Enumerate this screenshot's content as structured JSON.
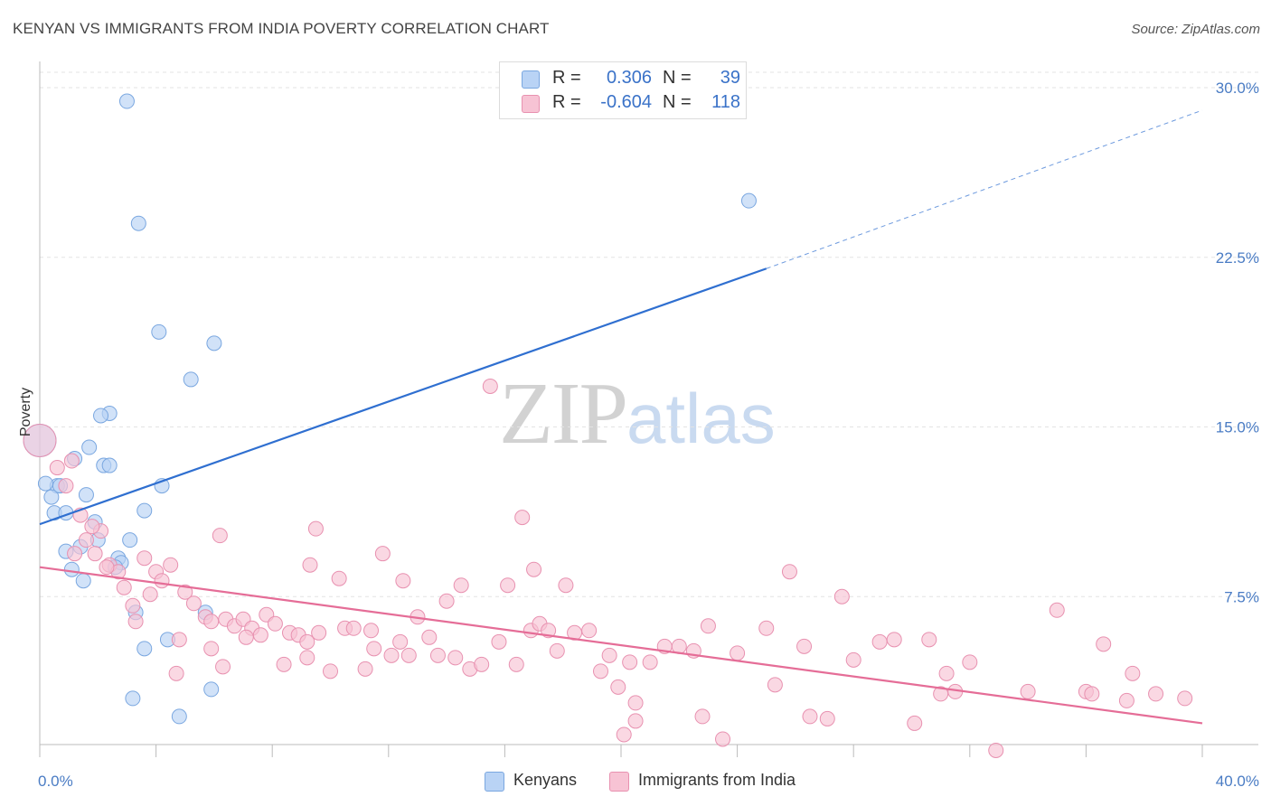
{
  "title": "KENYAN VS IMMIGRANTS FROM INDIA POVERTY CORRELATION CHART",
  "source": "Source: ZipAtlas.com",
  "watermark": {
    "zip": "ZIP",
    "atlas": "atlas"
  },
  "legend": {
    "rows": [
      {
        "r_label": "R =",
        "r_value": "0.306",
        "n_label": "N =",
        "n_value": "39",
        "color": "#b9d3f5",
        "border": "#7aa7e0"
      },
      {
        "r_label": "R =",
        "r_value": "-0.604",
        "n_label": "N =",
        "n_value": "118",
        "color": "#f7c3d4",
        "border": "#e891b0"
      }
    ]
  },
  "bottom_legend": [
    {
      "label": "Kenyans",
      "color": "#b9d3f5",
      "border": "#7aa7e0"
    },
    {
      "label": "Immigrants from India",
      "color": "#f7c3d4",
      "border": "#e891b0"
    }
  ],
  "chart_data": {
    "type": "scatter",
    "title": "KENYAN VS IMMIGRANTS FROM INDIA POVERTY CORRELATION CHART",
    "ylabel": "Poverty",
    "xlabel": "",
    "xlim": [
      0,
      40
    ],
    "ylim": [
      0,
      30
    ],
    "x_tick_labels": [
      "0.0%",
      "40.0%"
    ],
    "y_ticks": [
      7.5,
      15.0,
      22.5,
      30.0
    ],
    "y_tick_labels": [
      "7.5%",
      "15.0%",
      "22.5%",
      "30.0%"
    ],
    "grid": "horizontal dashed",
    "series": [
      {
        "name": "Kenyans",
        "color": "#b9d3f5",
        "stroke": "#7aa7e0",
        "line_color": "#2f6fd0",
        "trend": {
          "x0": 0,
          "y0": 10.7,
          "x1": 25,
          "y1": 22.0,
          "dash_to_x": 40,
          "dash_to_y": 29.0
        },
        "points": [
          [
            3.0,
            29.4
          ],
          [
            3.4,
            24.0
          ],
          [
            24.4,
            25.0
          ],
          [
            4.1,
            19.2
          ],
          [
            6.0,
            18.7
          ],
          [
            5.2,
            17.1
          ],
          [
            2.4,
            15.6
          ],
          [
            2.1,
            15.5
          ],
          [
            1.7,
            14.1
          ],
          [
            1.2,
            13.6
          ],
          [
            2.2,
            13.3
          ],
          [
            2.4,
            13.3
          ],
          [
            0.0,
            14.4
          ],
          [
            0.6,
            12.4
          ],
          [
            0.7,
            12.4
          ],
          [
            4.2,
            12.4
          ],
          [
            0.4,
            11.9
          ],
          [
            1.6,
            12.0
          ],
          [
            0.5,
            11.2
          ],
          [
            0.9,
            11.2
          ],
          [
            3.6,
            11.3
          ],
          [
            1.9,
            10.8
          ],
          [
            2.0,
            10.0
          ],
          [
            3.1,
            10.0
          ],
          [
            0.9,
            9.5
          ],
          [
            1.4,
            9.7
          ],
          [
            2.7,
            9.2
          ],
          [
            2.8,
            9.0
          ],
          [
            2.6,
            8.8
          ],
          [
            1.1,
            8.7
          ],
          [
            1.5,
            8.2
          ],
          [
            3.3,
            6.8
          ],
          [
            5.7,
            6.8
          ],
          [
            4.4,
            5.6
          ],
          [
            3.6,
            5.2
          ],
          [
            5.9,
            3.4
          ],
          [
            3.2,
            3.0
          ],
          [
            4.8,
            2.2
          ],
          [
            0.2,
            12.5
          ]
        ]
      },
      {
        "name": "Immigrants from India",
        "color": "#f7c3d4",
        "stroke": "#e891b0",
        "line_color": "#e56d97",
        "trend": {
          "x0": 0,
          "y0": 8.8,
          "x1": 40,
          "y1": 1.9
        },
        "points": [
          [
            0.0,
            14.4
          ],
          [
            0.6,
            13.2
          ],
          [
            1.1,
            13.5
          ],
          [
            0.9,
            12.4
          ],
          [
            1.4,
            11.1
          ],
          [
            1.6,
            10.0
          ],
          [
            2.1,
            10.4
          ],
          [
            1.2,
            9.4
          ],
          [
            1.9,
            9.4
          ],
          [
            2.4,
            8.9
          ],
          [
            2.7,
            8.6
          ],
          [
            2.9,
            7.9
          ],
          [
            3.2,
            7.1
          ],
          [
            3.6,
            9.2
          ],
          [
            3.8,
            7.6
          ],
          [
            4.0,
            8.6
          ],
          [
            4.2,
            8.2
          ],
          [
            4.5,
            8.9
          ],
          [
            4.8,
            5.6
          ],
          [
            5.0,
            7.7
          ],
          [
            5.3,
            7.2
          ],
          [
            5.7,
            6.6
          ],
          [
            5.9,
            5.2
          ],
          [
            6.2,
            10.2
          ],
          [
            6.4,
            6.5
          ],
          [
            6.7,
            6.2
          ],
          [
            7.0,
            6.5
          ],
          [
            7.3,
            6.1
          ],
          [
            7.6,
            5.8
          ],
          [
            7.8,
            6.7
          ],
          [
            8.1,
            6.3
          ],
          [
            8.4,
            4.5
          ],
          [
            8.6,
            5.9
          ],
          [
            8.9,
            5.8
          ],
          [
            9.2,
            5.5
          ],
          [
            9.6,
            5.9
          ],
          [
            9.3,
            8.9
          ],
          [
            9.5,
            10.5
          ],
          [
            10.0,
            4.2
          ],
          [
            10.3,
            8.3
          ],
          [
            10.5,
            6.1
          ],
          [
            10.8,
            6.1
          ],
          [
            11.2,
            4.3
          ],
          [
            11.5,
            5.2
          ],
          [
            11.8,
            9.4
          ],
          [
            12.1,
            4.9
          ],
          [
            12.4,
            5.5
          ],
          [
            12.7,
            4.9
          ],
          [
            12.5,
            8.2
          ],
          [
            13.0,
            6.6
          ],
          [
            13.4,
            5.7
          ],
          [
            13.7,
            4.9
          ],
          [
            14.0,
            7.3
          ],
          [
            14.3,
            4.8
          ],
          [
            14.5,
            8.0
          ],
          [
            14.8,
            4.3
          ],
          [
            15.2,
            4.5
          ],
          [
            15.5,
            16.8
          ],
          [
            15.8,
            5.5
          ],
          [
            16.1,
            8.0
          ],
          [
            16.4,
            4.5
          ],
          [
            16.6,
            11.0
          ],
          [
            16.9,
            6.0
          ],
          [
            17.2,
            6.3
          ],
          [
            17.5,
            6.0
          ],
          [
            17.0,
            8.7
          ],
          [
            17.8,
            5.1
          ],
          [
            18.1,
            8.0
          ],
          [
            18.4,
            5.9
          ],
          [
            18.9,
            6.0
          ],
          [
            19.3,
            4.2
          ],
          [
            19.6,
            4.9
          ],
          [
            19.9,
            3.5
          ],
          [
            20.3,
            4.6
          ],
          [
            20.5,
            2.0
          ],
          [
            21.0,
            4.6
          ],
          [
            21.5,
            5.3
          ],
          [
            22.0,
            5.3
          ],
          [
            22.5,
            5.1
          ],
          [
            22.8,
            2.2
          ],
          [
            23.0,
            6.2
          ],
          [
            24.0,
            5.0
          ],
          [
            25.0,
            6.1
          ],
          [
            25.3,
            3.6
          ],
          [
            25.8,
            8.6
          ],
          [
            26.3,
            5.3
          ],
          [
            26.5,
            2.2
          ],
          [
            27.1,
            2.1
          ],
          [
            27.6,
            7.5
          ],
          [
            28.0,
            4.7
          ],
          [
            28.9,
            5.5
          ],
          [
            29.4,
            5.6
          ],
          [
            30.1,
            1.9
          ],
          [
            30.6,
            5.6
          ],
          [
            31.2,
            4.1
          ],
          [
            31.5,
            3.3
          ],
          [
            32.0,
            4.6
          ],
          [
            31.0,
            3.2
          ],
          [
            32.9,
            0.7
          ],
          [
            34.0,
            3.3
          ],
          [
            35.0,
            6.9
          ],
          [
            36.0,
            3.3
          ],
          [
            36.6,
            5.4
          ],
          [
            37.4,
            2.9
          ],
          [
            37.6,
            4.1
          ],
          [
            38.4,
            3.2
          ],
          [
            39.4,
            3.0
          ],
          [
            36.2,
            3.2
          ],
          [
            20.1,
            1.4
          ],
          [
            23.5,
            1.2
          ],
          [
            20.5,
            2.8
          ],
          [
            11.4,
            6.0
          ],
          [
            9.2,
            4.8
          ],
          [
            7.1,
            5.7
          ],
          [
            6.3,
            4.4
          ],
          [
            5.9,
            6.4
          ],
          [
            4.7,
            4.1
          ],
          [
            3.3,
            6.4
          ],
          [
            2.3,
            8.8
          ],
          [
            1.8,
            10.6
          ]
        ]
      }
    ]
  }
}
